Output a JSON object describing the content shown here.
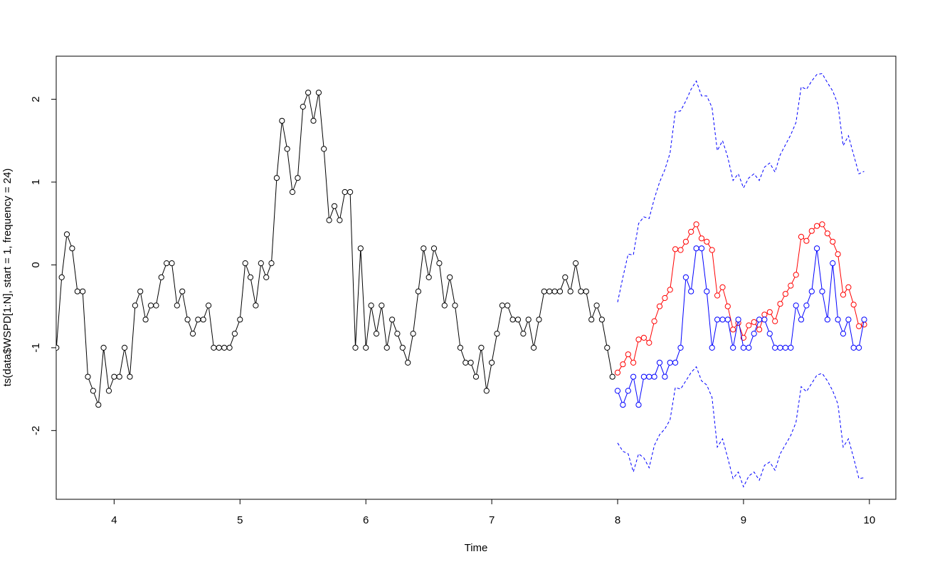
{
  "chart_data": {
    "type": "line",
    "xlabel": "Time",
    "ylabel": "ts(data$WSPD[1:N], start = 1, frequency = 24)",
    "xlim": [
      3.54,
      10.21
    ],
    "ylim": [
      -2.83,
      2.52
    ],
    "x_ticks": [
      4,
      5,
      6,
      7,
      8,
      9,
      10
    ],
    "y_ticks": [
      -2,
      -1,
      0,
      1,
      2
    ],
    "x_tick_labels": [
      "4",
      "5",
      "6",
      "7",
      "8",
      "9",
      "10"
    ],
    "y_tick_labels": [
      "-2",
      "-1",
      "0",
      "1",
      "2"
    ],
    "series": [
      {
        "role": "observed",
        "color": "#000000",
        "line": "solid",
        "markers": "open-circle",
        "x_start": 3.5417,
        "x_step": 0.041667,
        "values": [
          -1.0,
          -0.15,
          0.37,
          0.2,
          -0.32,
          -0.32,
          -1.35,
          -1.52,
          -1.69,
          -1.0,
          -1.52,
          -1.35,
          -1.35,
          -1.0,
          -1.35,
          -0.49,
          -0.32,
          -0.66,
          -0.49,
          -0.49,
          -0.15,
          0.02,
          0.02,
          -0.49,
          -0.32,
          -0.66,
          -0.83,
          -0.66,
          -0.66,
          -0.49,
          -1.0,
          -1.0,
          -1.0,
          -1.0,
          -0.83,
          -0.66,
          0.02,
          -0.15,
          -0.49,
          0.02,
          -0.15,
          0.02,
          1.05,
          1.74,
          1.4,
          0.88,
          1.05,
          1.91,
          2.08,
          1.74,
          2.08,
          1.4,
          0.54,
          0.71,
          0.54,
          0.88,
          0.88,
          -1.0,
          0.2,
          -1.0,
          -0.49,
          -0.83,
          -0.49,
          -1.0,
          -0.66,
          -0.83,
          -1.0,
          -1.18,
          -0.83,
          -0.32,
          0.2,
          -0.15,
          0.2,
          0.02,
          -0.49,
          -0.15,
          -0.49,
          -1.0,
          -1.18,
          -1.18,
          -1.35,
          -1.0,
          -1.52,
          -1.18,
          -0.83,
          -0.49,
          -0.49,
          -0.66,
          -0.66,
          -0.83,
          -0.66,
          -1.0,
          -0.66,
          -0.32,
          -0.32,
          -0.32,
          -0.32,
          -0.15,
          -0.32,
          0.02,
          -0.32,
          -0.32,
          -0.66,
          -0.49,
          -0.66,
          -1.0,
          -1.35
        ]
      },
      {
        "role": "forecast",
        "color": "#ff0000",
        "line": "solid",
        "markers": "open-circle",
        "x_start": 8.0,
        "x_step": 0.041667,
        "values": [
          -1.3,
          -1.2,
          -1.08,
          -1.18,
          -0.9,
          -0.88,
          -0.94,
          -0.68,
          -0.5,
          -0.4,
          -0.3,
          0.19,
          0.18,
          0.28,
          0.4,
          0.49,
          0.32,
          0.28,
          0.18,
          -0.37,
          -0.27,
          -0.5,
          -0.78,
          -0.7,
          -0.88,
          -0.73,
          -0.69,
          -0.78,
          -0.6,
          -0.57,
          -0.68,
          -0.47,
          -0.35,
          -0.25,
          -0.12,
          0.34,
          0.29,
          0.41,
          0.47,
          0.49,
          0.38,
          0.28,
          0.13,
          -0.36,
          -0.27,
          -0.48,
          -0.74,
          -0.72
        ]
      },
      {
        "role": "fitted",
        "color": "#0000ff",
        "line": "solid",
        "markers": "open-circle",
        "x_start": 8.0,
        "x_step": 0.041667,
        "values": [
          -1.52,
          -1.69,
          -1.52,
          -1.35,
          -1.69,
          -1.35,
          -1.35,
          -1.35,
          -1.18,
          -1.35,
          -1.18,
          -1.18,
          -1.0,
          -0.15,
          -0.32,
          0.2,
          0.2,
          -0.32,
          -1.0,
          -0.66,
          -0.66,
          -0.66,
          -1.0,
          -0.66,
          -1.0,
          -1.0,
          -0.83,
          -0.66,
          -0.66,
          -0.83,
          -1.0,
          -1.0,
          -1.0,
          -1.0,
          -0.49,
          -0.66,
          -0.49,
          -0.32,
          0.2,
          -0.32,
          -0.66,
          0.02,
          -0.66,
          -0.83,
          -0.66,
          -1.0,
          -1.0,
          -0.66
        ]
      },
      {
        "role": "upper-interval",
        "color": "#0000ff",
        "line": "dashed",
        "markers": "none",
        "x_start": 8.0,
        "x_step": 0.041667,
        "values": [
          -0.45,
          -0.15,
          0.13,
          0.12,
          0.5,
          0.58,
          0.56,
          0.8,
          1.0,
          1.15,
          1.35,
          1.85,
          1.86,
          1.98,
          2.12,
          2.22,
          2.04,
          2.04,
          1.9,
          1.38,
          1.5,
          1.3,
          1.02,
          1.1,
          0.93,
          1.05,
          1.1,
          1.02,
          1.18,
          1.23,
          1.12,
          1.33,
          1.45,
          1.57,
          1.72,
          2.15,
          2.12,
          2.22,
          2.3,
          2.31,
          2.2,
          2.1,
          1.94,
          1.44,
          1.56,
          1.33,
          1.1,
          1.13
        ]
      },
      {
        "role": "lower-interval",
        "color": "#0000ff",
        "line": "dashed",
        "markers": "none",
        "x_start": 8.0,
        "x_step": 0.041667,
        "values": [
          -2.15,
          -2.25,
          -2.28,
          -2.5,
          -2.28,
          -2.33,
          -2.45,
          -2.18,
          -2.05,
          -1.98,
          -1.87,
          -1.48,
          -1.5,
          -1.4,
          -1.3,
          -1.23,
          -1.4,
          -1.45,
          -1.6,
          -2.2,
          -2.1,
          -2.33,
          -2.58,
          -2.5,
          -2.68,
          -2.55,
          -2.5,
          -2.6,
          -2.42,
          -2.38,
          -2.48,
          -2.28,
          -2.17,
          -2.06,
          -1.9,
          -1.47,
          -1.53,
          -1.43,
          -1.33,
          -1.31,
          -1.4,
          -1.52,
          -1.68,
          -2.2,
          -2.1,
          -2.33,
          -2.58,
          -2.57
        ]
      }
    ]
  }
}
